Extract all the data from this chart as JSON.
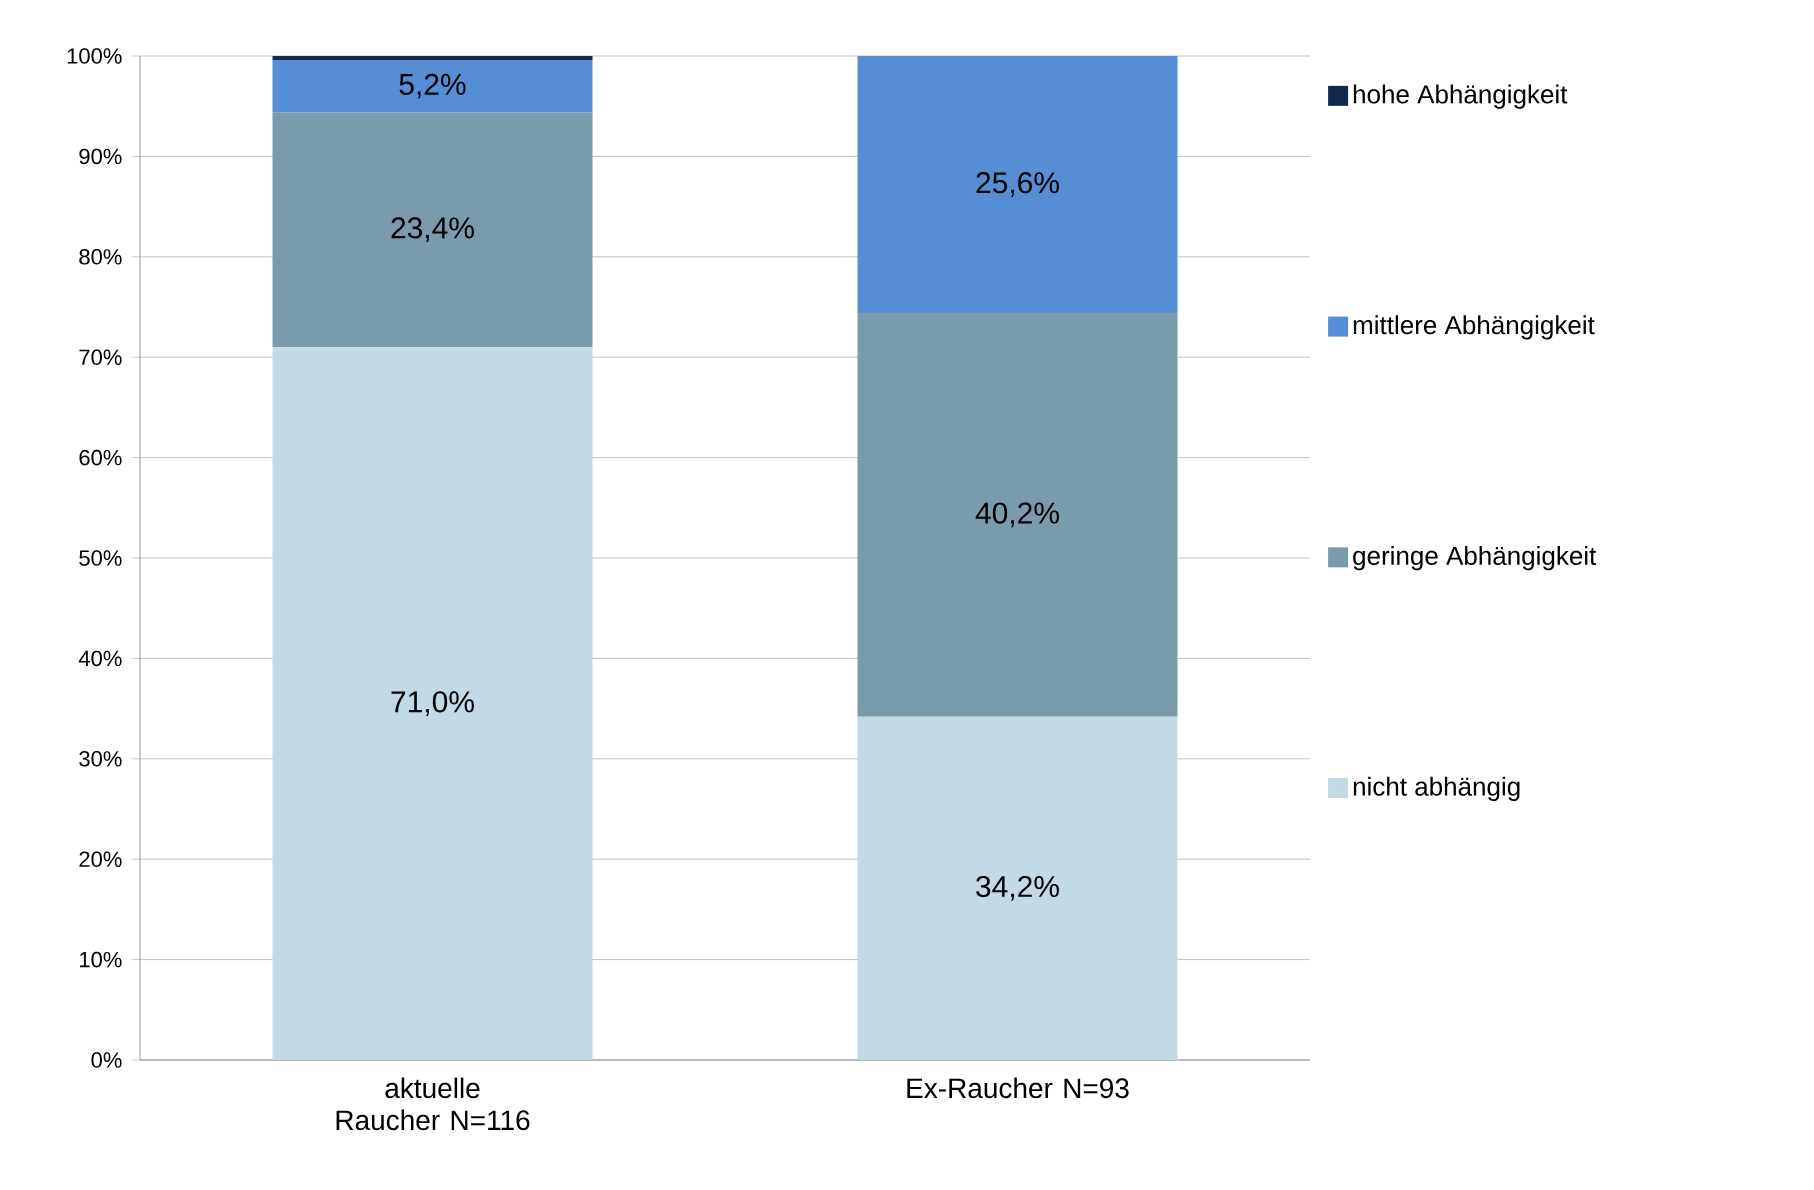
{
  "chart_data": {
    "type": "bar",
    "stacked": true,
    "categories": [
      "aktuelle Raucher N=116",
      "Ex-Raucher N=93"
    ],
    "series": [
      {
        "name": "nicht abhängig",
        "color": "#c3d9e6",
        "values": [
          71.0,
          34.2
        ],
        "value_labels": [
          "71,0%",
          "34,2%"
        ]
      },
      {
        "name": "geringe Abhängigkeit",
        "color": "#7a9bab",
        "values": [
          23.4,
          40.2
        ],
        "value_labels": [
          "23,4%",
          "40,2%"
        ]
      },
      {
        "name": "mittlere Abhängigkeit",
        "color": "#558ed5",
        "values": [
          5.2,
          25.6
        ],
        "value_labels": [
          "5,2%",
          "25,6%"
        ]
      },
      {
        "name": "hohe Abhängigkeit",
        "color": "#13294b",
        "values": [
          0.4,
          0
        ],
        "value_labels": [
          null,
          null
        ]
      }
    ],
    "ylim": [
      0,
      100
    ],
    "yticks": [
      {
        "value": 0,
        "label": "0%"
      },
      {
        "value": 10,
        "label": "10%"
      },
      {
        "value": 20,
        "label": "20%"
      },
      {
        "value": 30,
        "label": "30%"
      },
      {
        "value": 40,
        "label": "40%"
      },
      {
        "value": 50,
        "label": "50%"
      },
      {
        "value": 60,
        "label": "60%"
      },
      {
        "value": 70,
        "label": "70%"
      },
      {
        "value": 80,
        "label": "80%"
      },
      {
        "value": 90,
        "label": "90%"
      },
      {
        "value": 100,
        "label": "100%"
      }
    ],
    "grid": "y",
    "legend": "right"
  }
}
